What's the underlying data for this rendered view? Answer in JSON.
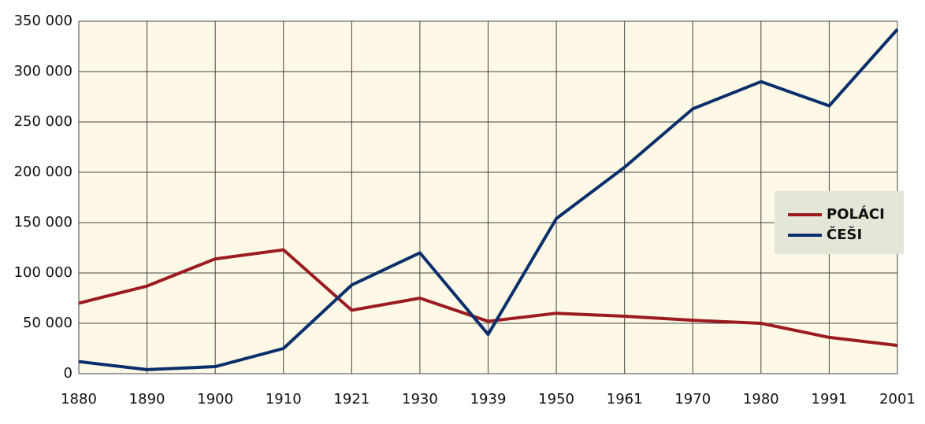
{
  "chart_data": {
    "type": "line",
    "categories": [
      "1880",
      "1890",
      "1900",
      "1910",
      "1921",
      "1930",
      "1939",
      "1950",
      "1961",
      "1970",
      "1980",
      "1991",
      "2001"
    ],
    "series": [
      {
        "name": "POLÁCI",
        "color": "#9b1b1f",
        "values": [
          70000,
          87000,
          114000,
          123000,
          63000,
          75000,
          52000,
          60000,
          57000,
          53000,
          50000,
          36000,
          28000
        ]
      },
      {
        "name": "ČEŠI",
        "color": "#0b2f6b",
        "values": [
          12000,
          4000,
          7000,
          25000,
          88000,
          120000,
          39000,
          154000,
          205000,
          263000,
          290000,
          266000,
          342000
        ]
      }
    ],
    "ylim": [
      0,
      350000
    ],
    "yticks": [
      0,
      {
        "value": 50000,
        "label": "50 000"
      },
      {
        "value": 100000,
        "label": "100 000"
      },
      {
        "value": 150000,
        "label": "150 000"
      },
      {
        "value": 200000,
        "label": "200 000"
      },
      {
        "value": 250000,
        "label": "250 000"
      },
      {
        "value": 300000,
        "label": "300 000"
      },
      {
        "value": 350000,
        "label": "350 000"
      }
    ],
    "grid": true,
    "legend": "right"
  }
}
